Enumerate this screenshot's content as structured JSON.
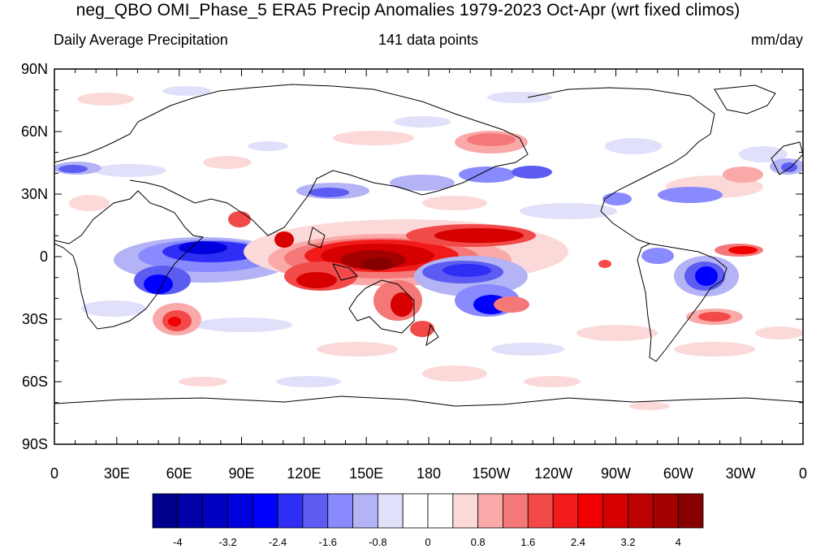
{
  "title": "neg_QBO OMI_Phase_5 ERA5 Precip Anomalies 1979-2023 Oct-Apr (wrt fixed climos)",
  "subtitle": {
    "left": "Daily Average Precipitation",
    "center": "141 data points",
    "right": "mm/day"
  },
  "map": {
    "lon_labels": [
      "0",
      "30E",
      "60E",
      "90E",
      "120E",
      "150E",
      "180",
      "150W",
      "120W",
      "90W",
      "60W",
      "30W",
      "0"
    ],
    "lat_labels": [
      "90N",
      "60N",
      "30N",
      "0",
      "30S",
      "60S",
      "90S"
    ],
    "projection": "cylindrical equidistant, 0-360 longitude"
  },
  "colorbar": {
    "labels": [
      "-4",
      "-3.2",
      "-2.4",
      "-1.6",
      "-0.8",
      "0",
      "0.8",
      "1.6",
      "2.4",
      "3.2",
      "4"
    ],
    "colors": [
      "#00008a",
      "#0000a6",
      "#0000c2",
      "#0000de",
      "#0000ff",
      "#2e2ef5",
      "#5c5cf2",
      "#8a8aff",
      "#b3b3f5",
      "#e0e0fa",
      "#ffffff",
      "#ffffff",
      "#fcd9d9",
      "#faa9a9",
      "#f57878",
      "#f24949",
      "#f21b1b",
      "#f00000",
      "#d60000",
      "#bf0000",
      "#a30000",
      "#870000"
    ]
  }
}
